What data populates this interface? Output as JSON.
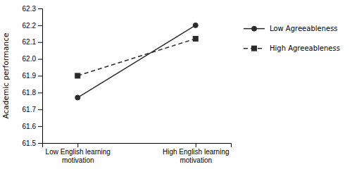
{
  "chart_data": {
    "type": "line",
    "y_label": "Academic performance",
    "categories": [
      "Low English learning\nmotivation",
      "High English learning\nmotivation"
    ],
    "series": [
      {
        "name": "Low Agreeableness",
        "color": "#2b2b2b",
        "marker": "circle",
        "line_style": "solid",
        "values": [
          61.77,
          62.2
        ]
      },
      {
        "name": "High Agreeableness",
        "color": "#2b2b2b",
        "marker": "square",
        "line_style": "dashed",
        "values": [
          61.9,
          62.12
        ]
      }
    ],
    "ylim": [
      61.5,
      62.3
    ],
    "yticks": [
      61.5,
      61.6,
      61.7,
      61.8,
      61.9,
      {
        "value": 62.0,
        "label": "62.0"
      },
      62.1,
      62.2,
      62.3
    ],
    "legend": "right"
  }
}
